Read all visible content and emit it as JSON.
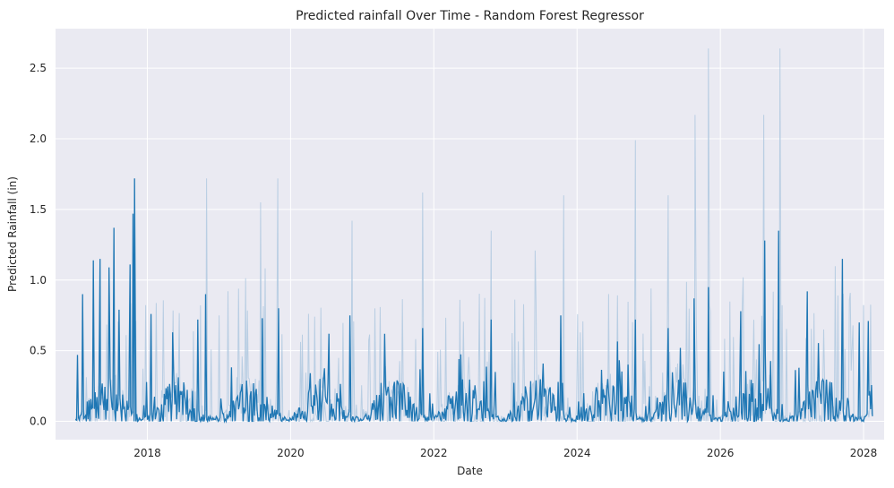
{
  "chart_data": {
    "type": "line",
    "title": "Predicted rainfall Over Time - Random Forest Regressor",
    "xlabel": "Date",
    "ylabel": "Predicted Rainfall (in)",
    "x_ticks": [
      "2018",
      "2020",
      "2022",
      "2024",
      "2026",
      "2028"
    ],
    "y_ticks": [
      "0.0",
      "0.5",
      "1.0",
      "1.5",
      "2.0",
      "2.5"
    ],
    "xlim": [
      "2016-09-20",
      "2028-04-15"
    ],
    "ylim": [
      -0.13,
      2.78
    ],
    "grid": true,
    "legend": "none",
    "series_colors": {
      "background_series": "#a8c4de",
      "predicted": "#1f77b4"
    },
    "data_range": {
      "start": "2017-01-01",
      "end": "2028-02-15"
    },
    "predicted_peaks": [
      {
        "date": "2017-01-10",
        "value": 0.47
      },
      {
        "date": "2017-02-05",
        "value": 0.9
      },
      {
        "date": "2017-04-01",
        "value": 1.14
      },
      {
        "date": "2017-05-05",
        "value": 1.15
      },
      {
        "date": "2017-06-20",
        "value": 1.09
      },
      {
        "date": "2017-07-15",
        "value": 1.37
      },
      {
        "date": "2017-08-10",
        "value": 0.79
      },
      {
        "date": "2017-10-05",
        "value": 1.11
      },
      {
        "date": "2017-10-20",
        "value": 1.47
      },
      {
        "date": "2017-10-28",
        "value": 1.72
      },
      {
        "date": "2018-01-20",
        "value": 0.76
      },
      {
        "date": "2018-05-10",
        "value": 0.63
      },
      {
        "date": "2018-09-15",
        "value": 0.72
      },
      {
        "date": "2018-10-25",
        "value": 0.9
      },
      {
        "date": "2019-08-10",
        "value": 0.73
      },
      {
        "date": "2019-11-01",
        "value": 0.8
      },
      {
        "date": "2020-07-15",
        "value": 0.62
      },
      {
        "date": "2020-10-30",
        "value": 0.75
      },
      {
        "date": "2021-11-05",
        "value": 0.66
      },
      {
        "date": "2022-10-20",
        "value": 0.72
      },
      {
        "date": "2023-10-10",
        "value": 0.75
      },
      {
        "date": "2024-10-25",
        "value": 0.72
      },
      {
        "date": "2025-04-10",
        "value": 0.66
      },
      {
        "date": "2025-08-20",
        "value": 0.87
      },
      {
        "date": "2025-11-01",
        "value": 0.95
      },
      {
        "date": "2026-04-15",
        "value": 0.78
      },
      {
        "date": "2026-08-15",
        "value": 1.28
      },
      {
        "date": "2026-10-25",
        "value": 1.35
      },
      {
        "date": "2027-03-20",
        "value": 0.92
      },
      {
        "date": "2027-09-15",
        "value": 1.15
      },
      {
        "date": "2027-12-10",
        "value": 0.7
      },
      {
        "date": "2028-01-25",
        "value": 0.71
      }
    ],
    "background_peaks": [
      {
        "date": "2018-10-30",
        "value": 1.72
      },
      {
        "date": "2019-10-28",
        "value": 1.72
      },
      {
        "date": "2019-08-01",
        "value": 1.55
      },
      {
        "date": "2020-11-10",
        "value": 1.42
      },
      {
        "date": "2021-11-05",
        "value": 1.62
      },
      {
        "date": "2022-10-20",
        "value": 1.35
      },
      {
        "date": "2023-10-25",
        "value": 1.6
      },
      {
        "date": "2024-10-25",
        "value": 1.99
      },
      {
        "date": "2025-04-10",
        "value": 1.6
      },
      {
        "date": "2025-08-25",
        "value": 2.17
      },
      {
        "date": "2025-11-01",
        "value": 2.64
      },
      {
        "date": "2026-08-10",
        "value": 2.17
      },
      {
        "date": "2026-11-01",
        "value": 2.64
      }
    ]
  }
}
